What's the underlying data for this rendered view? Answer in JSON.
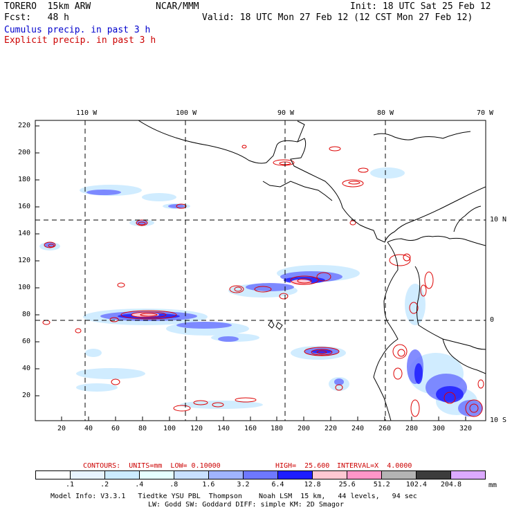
{
  "header": {
    "model": "TORERO  15km ARW",
    "org": "NCAR/MMM",
    "init": "Init: 18 UTC Sat 25 Feb 12",
    "fcst": "Fcst:   48 h",
    "valid": "Valid: 18 UTC Mon 27 Feb 12 (12 CST Mon 27 Feb 12)",
    "cumulus": "Cumulus precip. in past 3 h",
    "explicit": "Explicit precip. in past 3 h"
  },
  "colors": {
    "cumulus_text": "#0000cc",
    "explicit_text": "#cc0000",
    "contour": "#dd0000",
    "coast": "#000000"
  },
  "map": {
    "lon_labels": [
      "110 W",
      "100 W",
      "90 W",
      "80 W",
      "70 W"
    ],
    "lat_labels": [
      "10 N",
      "0",
      "10 S"
    ],
    "y_ticks": [
      "220",
      "200",
      "180",
      "160",
      "140",
      "120",
      "100",
      "80",
      "60",
      "40",
      "20"
    ],
    "x_ticks": [
      "20",
      "40",
      "60",
      "80",
      "100",
      "120",
      "140",
      "160",
      "180",
      "200",
      "220",
      "240",
      "260",
      "280",
      "300",
      "320"
    ]
  },
  "contours_line": {
    "label": "CONTOURS:  UNITS=mm  LOW= 0.10000",
    "high": "HIGH=  25.600",
    "interval": "INTERVAL=X  4.0000"
  },
  "legend": {
    "unit": "mm",
    "colors": [
      "#ffffff",
      "#e8f4ff",
      "#ccebff",
      "#e6ffff",
      "#c8e0ff",
      "#a0b4ff",
      "#6e78ff",
      "#1e1eff",
      "#ffc8d2",
      "#ff96c8",
      "#b4b4b4",
      "#3c3c3c",
      "#dcaaff"
    ],
    "labels": [
      ".1",
      ".2",
      ".4",
      ".8",
      "1.6",
      "3.2",
      "6.4",
      "12.8",
      "25.6",
      "51.2",
      "102.4",
      "204.8"
    ]
  },
  "footer": {
    "line1": "Model Info: V3.3.1   Tiedtke YSU PBL  Thompson    Noah LSM  15 km,   44 levels,   94 sec",
    "line2": "LW: Godd SW: Goddard DIFF: simple KM: 2D Smagor"
  }
}
